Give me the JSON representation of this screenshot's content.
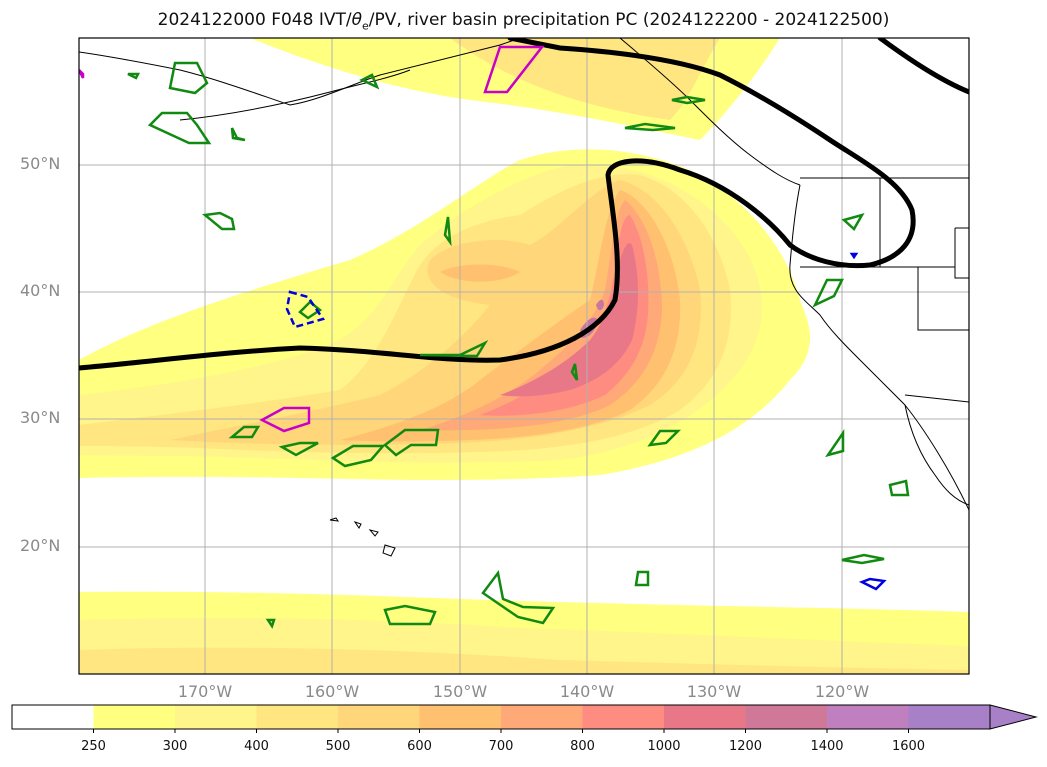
{
  "title": "2024122000 F048 IVT/θe/PV, river basin precipitation PC (2024122200 - 2024122500)",
  "title_parts": {
    "lead": "2024122000 F048 IVT/",
    "theta": "θ",
    "sub": "e",
    "tail": "/PV, river basin precipitation PC (2024122200 - 2024122500)"
  },
  "lat_labels": [
    "50°N",
    "40°N",
    "30°N",
    "20°N"
  ],
  "lon_labels": [
    "170°W",
    "160°W",
    "150°W",
    "140°W",
    "130°W",
    "120°W"
  ],
  "colorbar": {
    "levels": [
      "250",
      "300",
      "400",
      "500",
      "600",
      "700",
      "800",
      "1000",
      "1200",
      "1400",
      "1600"
    ],
    "colors": [
      "#ffffff",
      "#ffff80",
      "#fff58a",
      "#ffe680",
      "#ffd77a",
      "#ffc070",
      "#ffa878",
      "#ff8c80",
      "#e87888",
      "#d07898",
      "#c080c0",
      "#a880c8"
    ],
    "extend": "max"
  },
  "colors": {
    "contour_black": "#000000",
    "contour_green": "#108a10",
    "contour_magenta": "#c800c8",
    "contour_blue": "#0000e0",
    "grid": "#b0b0b0"
  }
}
